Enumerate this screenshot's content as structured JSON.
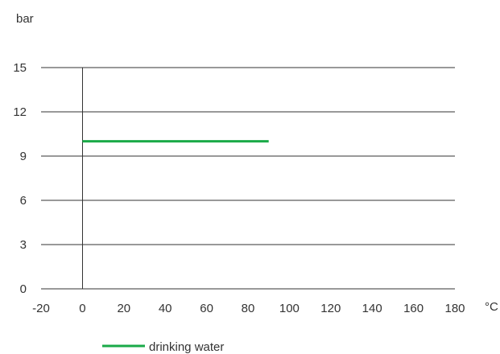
{
  "chart_data": {
    "type": "line",
    "ylabel": "bar",
    "xlabel": "°C",
    "xlim": [
      -20,
      180
    ],
    "ylim": [
      0,
      15
    ],
    "x_ticks": [
      -20,
      0,
      20,
      40,
      60,
      80,
      100,
      120,
      140,
      160,
      180
    ],
    "y_ticks": [
      0,
      3,
      6,
      9,
      12,
      15
    ],
    "x_tick_labels": [
      "-20",
      "0",
      "20",
      "40",
      "60",
      "80",
      "100",
      "120",
      "140",
      "160",
      "180"
    ],
    "y_tick_labels": [
      "0",
      "3",
      "6",
      "9",
      "12",
      "15"
    ],
    "grid": "horizontal",
    "legend_position": "bottom-left",
    "series": [
      {
        "name": "drinking water",
        "color": "#1aaa48",
        "x": [
          0,
          90
        ],
        "y": [
          10,
          10
        ]
      }
    ]
  },
  "colors": {
    "gridline": "#333333",
    "axis": "#333333",
    "text": "#333333"
  }
}
